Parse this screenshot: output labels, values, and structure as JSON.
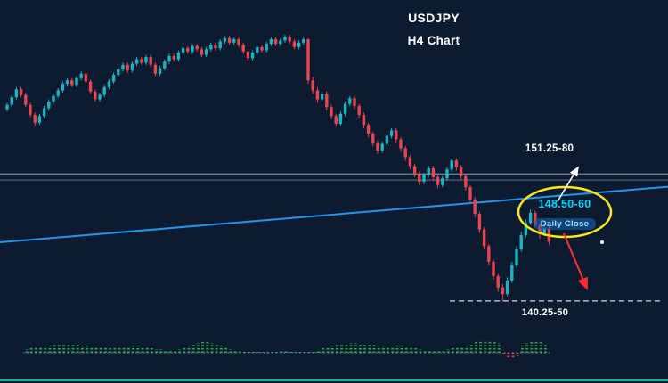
{
  "window": {
    "background": "#0d1b31"
  },
  "header": {
    "title": "USDJPY",
    "subtitle": "H4 Chart"
  },
  "chart_data": [
    {
      "type": "candlestick",
      "symbol": "USDJPY",
      "timeframe": "H4",
      "title": "USDJPY H4 Chart",
      "ylim": [
        133.0,
        167.43
      ],
      "grid": false,
      "ohlc_format": [
        "open",
        "high",
        "low",
        "close"
      ],
      "candles": [
        [
          157.6,
          158.2,
          157.4,
          158.0
        ],
        [
          158.0,
          158.9,
          157.8,
          158.7
        ],
        [
          158.7,
          159.6,
          158.5,
          159.4
        ],
        [
          159.4,
          159.6,
          158.7,
          158.9
        ],
        [
          158.9,
          159.1,
          157.8,
          158.0
        ],
        [
          158.0,
          158.2,
          156.9,
          157.1
        ],
        [
          157.1,
          157.3,
          156.1,
          156.4
        ],
        [
          156.4,
          157.2,
          156.2,
          157.0
        ],
        [
          157.0,
          157.9,
          156.8,
          157.7
        ],
        [
          157.7,
          158.5,
          157.5,
          158.3
        ],
        [
          158.3,
          159.0,
          158.1,
          158.8
        ],
        [
          158.8,
          159.5,
          158.6,
          159.3
        ],
        [
          159.3,
          160.1,
          159.1,
          159.9
        ],
        [
          159.9,
          160.4,
          159.7,
          160.2
        ],
        [
          160.2,
          160.4,
          159.6,
          159.8
        ],
        [
          159.8,
          160.6,
          159.6,
          160.4
        ],
        [
          160.4,
          161.0,
          160.2,
          160.8
        ],
        [
          160.8,
          161.0,
          159.9,
          160.1
        ],
        [
          160.1,
          160.3,
          159.0,
          159.2
        ],
        [
          159.2,
          159.4,
          158.3,
          158.5
        ],
        [
          158.5,
          159.1,
          158.3,
          158.9
        ],
        [
          158.9,
          159.8,
          158.7,
          159.6
        ],
        [
          159.6,
          160.3,
          159.4,
          160.1
        ],
        [
          160.1,
          160.9,
          159.9,
          160.7
        ],
        [
          160.7,
          161.4,
          160.5,
          161.2
        ],
        [
          161.2,
          161.8,
          161.0,
          161.6
        ],
        [
          161.6,
          161.8,
          160.9,
          161.1
        ],
        [
          161.1,
          161.9,
          160.9,
          161.7
        ],
        [
          161.7,
          162.3,
          161.5,
          162.1
        ],
        [
          162.1,
          162.3,
          161.6,
          161.8
        ],
        [
          161.8,
          162.5,
          161.6,
          162.3
        ],
        [
          162.3,
          162.5,
          161.4,
          161.6
        ],
        [
          161.6,
          161.8,
          160.6,
          160.8
        ],
        [
          160.8,
          161.5,
          160.6,
          161.3
        ],
        [
          161.3,
          162.1,
          161.1,
          161.9
        ],
        [
          161.9,
          162.6,
          161.7,
          162.4
        ],
        [
          162.4,
          162.6,
          161.9,
          162.1
        ],
        [
          162.1,
          162.9,
          161.9,
          162.7
        ],
        [
          162.7,
          163.3,
          162.5,
          163.1
        ],
        [
          163.1,
          163.3,
          162.6,
          162.8
        ],
        [
          162.8,
          163.5,
          162.6,
          163.3
        ],
        [
          163.3,
          163.5,
          162.8,
          163.0
        ],
        [
          163.0,
          163.2,
          162.3,
          162.5
        ],
        [
          162.5,
          163.2,
          162.3,
          163.0
        ],
        [
          163.0,
          163.6,
          162.8,
          163.4
        ],
        [
          163.4,
          163.6,
          162.9,
          163.1
        ],
        [
          163.1,
          163.9,
          162.9,
          163.7
        ],
        [
          163.7,
          164.2,
          163.5,
          164.0
        ],
        [
          164.0,
          164.2,
          163.4,
          163.6
        ],
        [
          163.6,
          164.1,
          163.4,
          163.9
        ],
        [
          163.9,
          164.1,
          163.2,
          163.4
        ],
        [
          163.4,
          163.6,
          162.6,
          162.8
        ],
        [
          162.8,
          163.0,
          162.0,
          162.2
        ],
        [
          162.2,
          162.9,
          162.0,
          162.7
        ],
        [
          162.7,
          163.4,
          162.5,
          163.2
        ],
        [
          163.2,
          163.4,
          162.7,
          162.9
        ],
        [
          162.9,
          163.7,
          162.7,
          163.5
        ],
        [
          163.5,
          164.1,
          163.3,
          163.9
        ],
        [
          163.9,
          164.1,
          163.3,
          163.5
        ],
        [
          163.5,
          164.0,
          163.3,
          163.8
        ],
        [
          163.8,
          164.3,
          163.6,
          164.1
        ],
        [
          164.1,
          164.3,
          163.5,
          163.7
        ],
        [
          163.7,
          163.9,
          163.0,
          163.2
        ],
        [
          163.2,
          163.8,
          163.0,
          163.6
        ],
        [
          163.6,
          164.1,
          163.4,
          163.9
        ],
        [
          163.9,
          164.0,
          159.9,
          160.2
        ],
        [
          160.2,
          160.5,
          159.0,
          159.3
        ],
        [
          159.3,
          159.6,
          158.2,
          158.5
        ],
        [
          158.5,
          159.2,
          158.3,
          159.0
        ],
        [
          159.0,
          159.2,
          157.5,
          157.8
        ],
        [
          157.8,
          158.0,
          156.7,
          157.0
        ],
        [
          157.0,
          157.2,
          156.0,
          156.3
        ],
        [
          156.3,
          157.4,
          156.1,
          157.2
        ],
        [
          157.2,
          158.3,
          157.0,
          158.1
        ],
        [
          158.1,
          158.8,
          157.9,
          158.6
        ],
        [
          158.6,
          158.8,
          157.6,
          157.9
        ],
        [
          157.9,
          158.1,
          156.8,
          157.1
        ],
        [
          157.1,
          157.3,
          155.9,
          156.2
        ],
        [
          156.2,
          156.4,
          155.1,
          155.4
        ],
        [
          155.4,
          155.6,
          154.3,
          154.6
        ],
        [
          154.6,
          154.8,
          153.6,
          153.9
        ],
        [
          153.9,
          154.7,
          153.7,
          154.5
        ],
        [
          154.5,
          155.4,
          154.3,
          155.2
        ],
        [
          155.2,
          155.9,
          155.0,
          155.7
        ],
        [
          155.7,
          155.9,
          154.6,
          154.9
        ],
        [
          154.9,
          155.1,
          153.8,
          154.1
        ],
        [
          154.1,
          154.3,
          153.0,
          153.3
        ],
        [
          153.3,
          153.5,
          152.2,
          152.5
        ],
        [
          152.5,
          152.7,
          151.5,
          151.8
        ],
        [
          151.8,
          152.0,
          150.8,
          151.1
        ],
        [
          151.1,
          151.9,
          150.9,
          151.7
        ],
        [
          151.7,
          152.5,
          151.5,
          152.3
        ],
        [
          152.3,
          152.5,
          151.2,
          151.5
        ],
        [
          151.5,
          151.7,
          150.5,
          150.8
        ],
        [
          150.8,
          151.6,
          150.6,
          151.4
        ],
        [
          151.4,
          152.4,
          151.2,
          152.2
        ],
        [
          152.2,
          153.2,
          152.0,
          153.0
        ],
        [
          153.0,
          153.2,
          152.1,
          152.4
        ],
        [
          152.4,
          152.6,
          151.3,
          151.6
        ],
        [
          151.6,
          151.8,
          150.3,
          150.6
        ],
        [
          150.6,
          150.8,
          149.2,
          149.5
        ],
        [
          149.5,
          149.7,
          147.9,
          148.2
        ],
        [
          148.2,
          148.4,
          146.5,
          146.8
        ],
        [
          146.8,
          147.0,
          145.0,
          145.3
        ],
        [
          145.3,
          145.5,
          143.6,
          143.9
        ],
        [
          143.9,
          144.1,
          142.3,
          142.6
        ],
        [
          142.6,
          142.8,
          141.2,
          141.6
        ],
        [
          141.6,
          141.9,
          140.35,
          141.0
        ],
        [
          141.0,
          142.5,
          140.8,
          142.2
        ],
        [
          142.2,
          143.9,
          142.0,
          143.6
        ],
        [
          143.6,
          145.3,
          143.4,
          145.0
        ],
        [
          145.0,
          146.6,
          144.8,
          146.3
        ],
        [
          146.3,
          147.7,
          146.1,
          147.4
        ],
        [
          147.4,
          148.6,
          147.2,
          148.3
        ],
        [
          148.3,
          148.5,
          147.0,
          147.2
        ],
        [
          147.2,
          147.4,
          146.0,
          146.4
        ],
        [
          146.4,
          147.2,
          146.2,
          146.9
        ],
        [
          146.9,
          147.1,
          145.4,
          145.7
        ]
      ],
      "trendline": {
        "price_start": 145.65,
        "price_end": 150.65
      },
      "levels": {
        "resistance": {
          "label": "151.25-80",
          "prices": [
            151.8,
            151.25
          ],
          "style": "solid"
        },
        "support": {
          "label": "140.25-50",
          "price": 140.375,
          "style": "dashed"
        }
      },
      "zone_callout": {
        "label": "148.50-60",
        "sublabel": "Daily Close",
        "price": 148.45
      },
      "colors": {
        "up": "#1fb3c1",
        "down": "#e8454e",
        "trendline": "#2196f3",
        "level": "#b9c6d8",
        "support": "#cdd6e2",
        "ellipse": "#ffe81a",
        "arrow_up": "#ffffff",
        "arrow_down": "#ff2e2e"
      }
    },
    {
      "type": "bar",
      "name": "momentum histogram",
      "values": [
        4,
        5,
        6,
        7,
        8,
        8,
        9,
        9,
        10,
        10,
        9,
        9,
        8,
        8,
        7,
        7,
        6,
        6,
        5,
        5,
        6,
        7,
        7,
        8,
        8,
        7,
        6,
        5,
        4,
        4,
        3,
        3,
        2,
        4,
        6,
        8,
        10,
        11,
        12,
        12,
        11,
        10,
        8,
        6,
        4,
        3,
        2,
        1,
        1,
        1,
        1,
        1,
        1,
        1,
        1,
        2,
        2,
        1,
        1,
        1,
        1,
        1,
        1,
        3,
        5,
        6,
        8,
        9,
        10,
        10,
        11,
        11,
        10,
        10,
        9,
        9,
        8,
        8,
        7,
        7,
        8,
        8,
        7,
        6,
        5,
        4,
        3,
        3,
        2,
        2,
        3,
        4,
        5,
        6,
        7,
        8,
        10,
        12,
        13,
        14,
        14,
        13,
        11,
        -3,
        -5,
        -6,
        -4,
        8,
        11,
        13,
        14,
        12,
        9
      ],
      "colors": {
        "positive": "#35b04c",
        "negative": "#e8454e",
        "baseline": "#7f96b5",
        "bottom_line": "#1fae9e"
      }
    }
  ]
}
